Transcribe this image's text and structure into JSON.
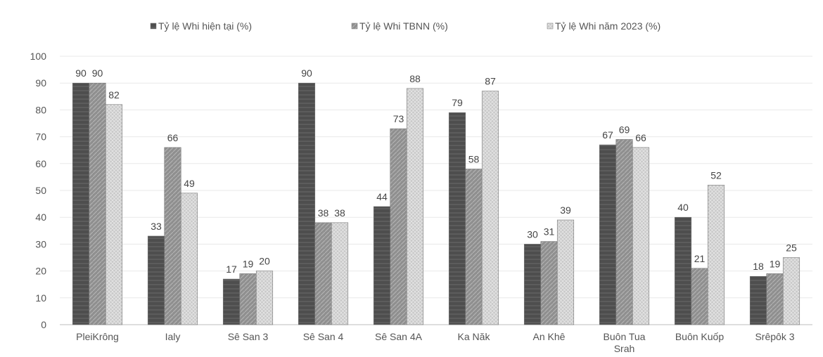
{
  "chart_data": {
    "type": "bar",
    "categories": [
      "PleiKrông",
      "Ialy",
      "Sê San 3",
      "Sê San 4",
      "Sê San 4A",
      "Ka Năk",
      "An Khê",
      "Buôn Tua Srah",
      "Buôn Kuốp",
      "Srêpôk 3"
    ],
    "category_lines": [
      [
        "PleiKrông"
      ],
      [
        "Ialy"
      ],
      [
        "Sê San 3"
      ],
      [
        "Sê San 4"
      ],
      [
        "Sê San 4A"
      ],
      [
        "Ka Năk"
      ],
      [
        "An Khê"
      ],
      [
        "Buôn Tua",
        "Srah"
      ],
      [
        "Buôn Kuốp"
      ],
      [
        "Srêpôk 3"
      ]
    ],
    "series": [
      {
        "name": "Tỷ lệ Whi hiện tại (%)",
        "values": [
          90,
          33,
          17,
          90,
          44,
          79,
          30,
          67,
          40,
          18
        ],
        "color": "#555555"
      },
      {
        "name": "Tỷ lệ Whi TBNN (%)",
        "values": [
          90,
          66,
          19,
          38,
          73,
          58,
          31,
          69,
          21,
          19
        ],
        "color": "#9a9a9a"
      },
      {
        "name": "Tỷ lệ Whi năm 2023 (%)",
        "values": [
          82,
          49,
          20,
          38,
          88,
          87,
          39,
          66,
          52,
          25
        ],
        "color": "#cfcfcf"
      }
    ],
    "yticks": [
      0,
      10,
      20,
      30,
      40,
      50,
      60,
      70,
      80,
      90,
      100
    ],
    "ylim": [
      0,
      100
    ],
    "legend_position": "top",
    "grid": true,
    "data_labels": true
  }
}
